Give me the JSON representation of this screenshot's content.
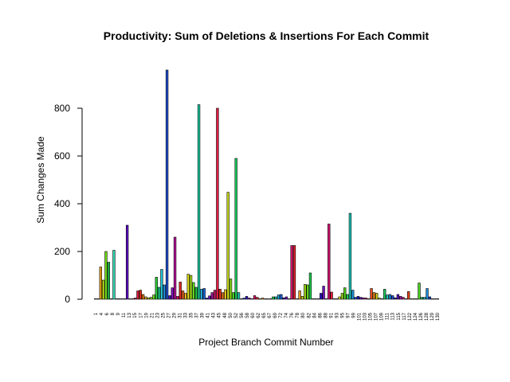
{
  "chart_data": {
    "type": "bar",
    "title": "Productivity: Sum of Deletions & Insertions For Each Commit",
    "xlabel": "Project Branch Commit Number",
    "ylabel": "Sum Changes Made",
    "ylim": [
      0,
      1000
    ],
    "yticks": [
      0,
      200,
      400,
      600,
      800
    ],
    "grid": false,
    "legend": "none",
    "tick_labels": [
      "1",
      "4",
      "6",
      "8",
      "9",
      "11",
      "13",
      "15",
      "17",
      "19",
      "21",
      "23",
      "25",
      "27",
      "29",
      "31",
      "33",
      "35",
      "37",
      "39",
      "41",
      "43",
      "45",
      "48",
      "50",
      "52",
      "56",
      "58",
      "60",
      "62",
      "65",
      "67",
      "69",
      "72",
      "74",
      "76",
      "78",
      "80",
      "82",
      "84",
      "86",
      "88",
      "91",
      "93",
      "95",
      "97",
      "99",
      "101",
      "103",
      "105",
      "107",
      "109",
      "111",
      "113",
      "115",
      "117",
      "122",
      "124",
      "126",
      "128",
      "129",
      "130"
    ],
    "x": [
      1,
      2,
      3,
      4,
      5,
      6,
      7,
      8,
      9,
      10,
      11,
      12,
      13,
      14,
      15,
      16,
      17,
      18,
      19,
      20,
      21,
      22,
      23,
      24,
      25,
      26,
      27,
      28,
      29,
      30,
      31,
      32,
      33,
      34,
      35,
      36,
      37,
      38,
      39,
      40,
      41,
      42,
      43,
      44,
      45,
      46,
      47,
      48,
      49,
      50,
      51,
      52,
      53,
      54,
      55,
      56,
      57,
      58,
      59,
      60,
      61,
      62,
      63,
      64,
      65,
      66,
      67,
      68,
      69,
      70,
      71,
      72,
      73,
      74,
      75,
      76,
      77,
      78,
      79,
      80,
      81,
      82,
      83,
      84,
      85,
      86,
      87,
      88,
      89,
      90,
      91,
      92,
      93,
      94,
      95,
      96,
      97,
      98,
      99,
      100,
      101,
      102,
      103,
      104,
      105,
      106,
      107,
      108,
      109,
      110,
      111,
      112,
      113,
      114,
      115,
      116,
      117,
      118,
      119,
      120,
      121,
      122,
      123,
      124,
      125,
      126,
      127,
      128,
      129,
      130
    ],
    "values": [
      2,
      2,
      135,
      80,
      200,
      155,
      2,
      205,
      2,
      2,
      2,
      2,
      310,
      2,
      2,
      5,
      35,
      38,
      20,
      10,
      6,
      8,
      18,
      92,
      50,
      125,
      60,
      960,
      15,
      48,
      260,
      12,
      72,
      35,
      25,
      105,
      100,
      70,
      50,
      815,
      42,
      45,
      5,
      14,
      28,
      38,
      800,
      42,
      28,
      40,
      448,
      85,
      28,
      590,
      28,
      2,
      5,
      12,
      5,
      2,
      15,
      8,
      2,
      5,
      2,
      2,
      2,
      10,
      10,
      18,
      20,
      6,
      10,
      2,
      225,
      225,
      2,
      35,
      12,
      62,
      60,
      110,
      2,
      2,
      2,
      25,
      55,
      2,
      315,
      30,
      2,
      2,
      10,
      25,
      48,
      20,
      360,
      38,
      8,
      12,
      8,
      6,
      5,
      2,
      45,
      28,
      25,
      5,
      2,
      42,
      18,
      20,
      15,
      6,
      20,
      12,
      8,
      2,
      32,
      2,
      2,
      2,
      68,
      8,
      8,
      45,
      10,
      2,
      2,
      2
    ],
    "colors": [
      "#5e3a9a",
      "#4c5a8a",
      "#e8a51a",
      "#bde21a",
      "#6fde10",
      "#23b84d",
      "#20c8a0",
      "#2fd6b2",
      "#26a8dc",
      "#2e75d8",
      "#4a30c8",
      "#5b1ab8",
      "#5e10c8",
      "#8a1ab0",
      "#a81090",
      "#c81870",
      "#d81a3c",
      "#e03218",
      "#e87a1a",
      "#e8a81a",
      "#d8d81a",
      "#a8e01a",
      "#6cde18",
      "#2cd03a",
      "#20c890",
      "#20c0d0",
      "#2090e0",
      "#2050d0",
      "#4818c8",
      "#8812c0",
      "#b8129a",
      "#d81266",
      "#e62a20",
      "#ea6a1a",
      "#eeb01a",
      "#e0de1a",
      "#a8e21a",
      "#5ed81a",
      "#22cc42",
      "#1ec8a0",
      "#1eaee0",
      "#1e6ae0",
      "#2e24c8",
      "#6a14c0",
      "#a0149a",
      "#d0126a",
      "#e61a40",
      "#ea341e",
      "#ea7a1a",
      "#eac21a",
      "#cede1a",
      "#8ae01a",
      "#46d81e",
      "#1ed060",
      "#1ecab8",
      "#1e9ae0",
      "#1e56d8",
      "#3818c6",
      "#7814c0",
      "#b4129e",
      "#d8126a",
      "#e6262a",
      "#e8601a",
      "#eaa41a",
      "#e2d81a",
      "#aade1a",
      "#66d81a",
      "#22cc4e",
      "#1ec8a8",
      "#1ea6e0",
      "#1e5ed8",
      "#3018c6",
      "#7214c0",
      "#ae12a0",
      "#d6126c",
      "#e6222e",
      "#e8561a",
      "#ea9c1a",
      "#e0d61a",
      "#a6de1a",
      "#5ed81a",
      "#20cc52",
      "#1ec8ae",
      "#1ea0e0",
      "#1e58d8",
      "#2c18c6",
      "#6c14c0",
      "#a812a2",
      "#d2126e",
      "#e61e32",
      "#e8501a",
      "#ea961a",
      "#dcd41a",
      "#9cdc1a",
      "#56d61c",
      "#20cc58",
      "#1ec6b4",
      "#1e98e0",
      "#1e50d6",
      "#2818c6",
      "#6414c0",
      "#a212a4",
      "#ce1272",
      "#e61c36",
      "#e84a1a",
      "#ea8e1a",
      "#d8d21a",
      "#96dc1a",
      "#4ed41e",
      "#20ca60",
      "#1ec4ba",
      "#1e92e0",
      "#1e4ad4",
      "#2418c6",
      "#5e14c2",
      "#9c12a6",
      "#ca1276",
      "#e41a3a",
      "#e8461a",
      "#ea881a",
      "#d4d01a",
      "#90da1a",
      "#48d420",
      "#20ca66",
      "#1ec2c0",
      "#1e8ce0",
      "#1e44d2",
      "#2018c6",
      "#5814c2",
      "#9612a8"
    ]
  }
}
